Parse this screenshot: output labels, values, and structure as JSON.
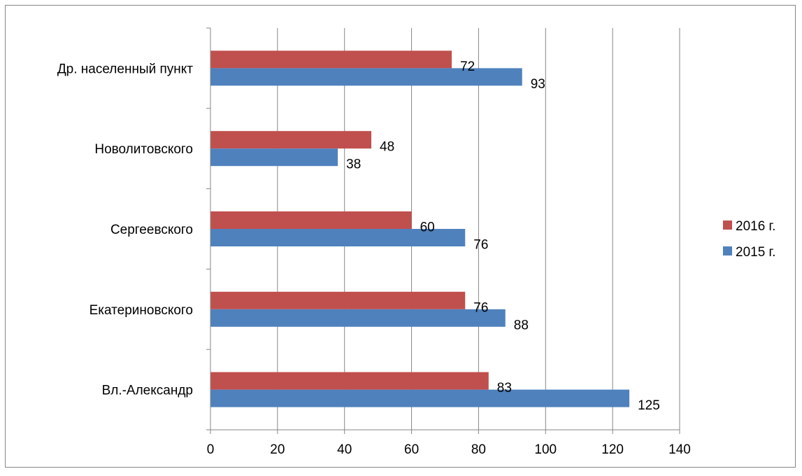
{
  "chart_data": {
    "type": "bar",
    "orientation": "horizontal",
    "categories": [
      "Вл.-Александр",
      "Екатериновского",
      "Сергеевского",
      "Новолитовского",
      "Др. населенный пункт"
    ],
    "series": [
      {
        "name": "2016 г.",
        "color": "#c0504d",
        "values": [
          83,
          76,
          60,
          48,
          72
        ]
      },
      {
        "name": "2015 г.",
        "color": "#4f81bd",
        "values": [
          125,
          88,
          76,
          38,
          93
        ]
      }
    ],
    "xlim": [
      0,
      140
    ],
    "x_ticks": [
      0,
      20,
      40,
      60,
      80,
      100,
      120,
      140
    ],
    "grid": true,
    "legend_position": "right",
    "data_labels": true
  }
}
